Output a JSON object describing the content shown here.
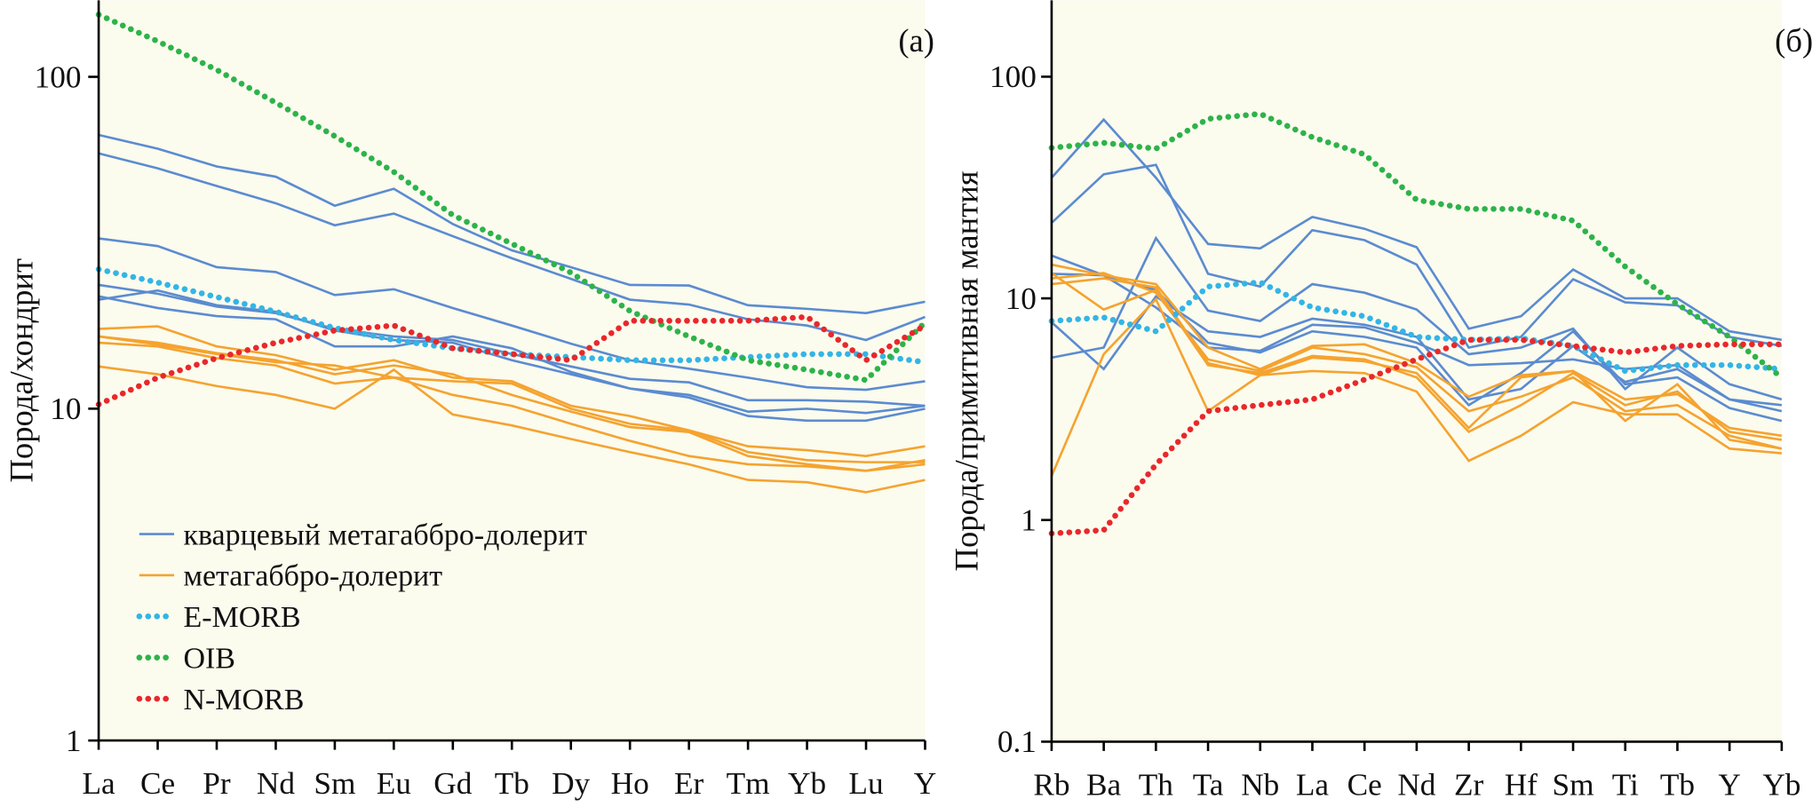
{
  "chart_data": [
    {
      "type": "line",
      "label": "(а)",
      "ylabel": "Порода/хондрит",
      "log_scale": true,
      "legend": "lower left",
      "categories": [
        "La",
        "Ce",
        "Pr",
        "Nd",
        "Sm",
        "Eu",
        "Gd",
        "Tb",
        "Dy",
        "Ho",
        "Er",
        "Tm",
        "Yb",
        "Lu",
        "Y"
      ],
      "ylim": [
        1,
        170
      ],
      "yticks": [
        1,
        10,
        100
      ],
      "series": [
        {
          "name": "кварцевый метагаббро-долерит",
          "color": "#5b8bd0",
          "style": "solid",
          "values": [
            [
              66.8,
              60.7,
              53.7,
              50,
              40.9,
              46,
              36,
              30,
              26.7,
              23.6,
              23.5,
              20.5,
              20,
              19.4,
              21
            ],
            [
              58.8,
              53,
              46.9,
              41.6,
              35.7,
              38.7,
              33.1,
              28.4,
              24.6,
              21.3,
              20.6,
              18.6,
              17.8,
              16.1,
              18.9
            ],
            [
              32.6,
              30.9,
              26.7,
              25.8,
              22,
              22.9,
              20.1,
              17.8,
              15.7,
              14,
              13.2,
              12.4,
              11.6,
              11.4,
              12.1
            ],
            [
              23.6,
              22.2,
              20.3,
              19.4,
              17.4,
              16.5,
              16.1,
              14.6,
              13.4,
              12.3,
              12,
              10.6,
              10.6,
              10.5,
              10.2
            ],
            [
              21.3,
              22.7,
              20.5,
              19.6,
              17.2,
              16.1,
              15.8,
              14,
              12.7,
              11.5,
              11,
              9.8,
              10,
              9.7,
              10.2
            ],
            [
              21.8,
              20.1,
              19,
              18.6,
              15.4,
              15.4,
              16.5,
              15.2,
              12.9,
              11.5,
              10.8,
              9.5,
              9.2,
              9.2,
              10
            ]
          ]
        },
        {
          "name": "метагаббро-долерит",
          "color": "#f5a32f",
          "style": "solid",
          "values": [
            [
              17.4,
              17.7,
              15.4,
              14.5,
              13.1,
              14,
              12.4,
              12.1,
              10.2,
              9.5,
              8.6,
              7.7,
              7.5,
              7.2,
              7.7
            ],
            [
              16.5,
              15.8,
              14.7,
              14,
              12.7,
              13.5,
              12.7,
              11,
              9.8,
              8.8,
              8.5,
              7.2,
              6.8,
              6.5,
              7
            ],
            [
              15.8,
              15.4,
              14.2,
              13.5,
              11.9,
              12.4,
              12.1,
              11.9,
              10,
              9,
              8.6,
              7.4,
              7,
              6.9,
              6.9
            ],
            [
              13.4,
              12.7,
              11.7,
              11,
              10,
              13.1,
              9.6,
              8.9,
              8.1,
              7.4,
              6.8,
              6.1,
              6,
              5.6,
              6.1
            ],
            [
              16.5,
              15.6,
              14.6,
              13.8,
              13.5,
              12.4,
              11,
              10.2,
              9,
              8,
              7.2,
              6.8,
              6.7,
              6.5,
              6.8
            ]
          ]
        },
        {
          "name": "E-MORB",
          "color": "#33b5e5",
          "style": "dotted",
          "values": [
            26.3,
            24,
            21.7,
            19.6,
            17.5,
            16.1,
            15.2,
            14.6,
            14.3,
            14,
            14,
            14.3,
            14.6,
            14.6,
            13.8
          ]
        },
        {
          "name": "OIB",
          "color": "#2db34a",
          "style": "dotted",
          "values": [
            154,
            128,
            105,
            83.6,
            66.3,
            51.7,
            38.3,
            31.4,
            25.7,
            19.7,
            16.5,
            14,
            13.1,
            12.2,
            18.2
          ]
        },
        {
          "name": "N-MORB",
          "color": "#e8282b",
          "style": "dotted",
          "values": [
            10.3,
            12.4,
            14.2,
            15.8,
            17.2,
            17.8,
            15.2,
            14.6,
            14,
            18.4,
            18.4,
            18.4,
            18.9,
            14,
            17.8
          ]
        }
      ]
    },
    {
      "type": "line",
      "label": "(б)",
      "ylabel": "Порода/примитивная мантия",
      "log_scale": true,
      "categories": [
        "Rb",
        "Ba",
        "Th",
        "Ta",
        "Nb",
        "La",
        "Ce",
        "Nd",
        "Zr",
        "Hf",
        "Sm",
        "Ti",
        "Tb",
        "Y",
        "Yb"
      ],
      "ylim": [
        0.1,
        221
      ],
      "yticks": [
        0.1,
        1,
        10,
        100
      ],
      "series": [
        {
          "name": "кварцевый метагаббро-долерит",
          "color": "#5b8bd0",
          "style": "solid",
          "values": [
            [
              35,
              64,
              35,
              17.6,
              16.8,
              23.3,
              20.6,
              17,
              7.3,
              8.3,
              13.5,
              10,
              10,
              7.1,
              6.5
            ],
            [
              21.9,
              36.3,
              40,
              12.9,
              11.3,
              20.3,
              18.3,
              14.2,
              6,
              6.7,
              12.2,
              9.6,
              9.3,
              6.7,
              6.1
            ],
            [
              5.4,
              6,
              18.7,
              8.8,
              7.9,
              11.6,
              10.6,
              8.9,
              5.6,
              6,
              7.3,
              3.9,
              6,
              4.1,
              3.5
            ],
            [
              7.8,
              4.8,
              10.2,
              7.1,
              6.7,
              8.1,
              7.6,
              6.7,
              3.5,
              3.9,
              6.1,
              4.2,
              4.8,
              3.5,
              3.1
            ],
            [
              15.6,
              12.7,
              9.1,
              6,
              5.8,
              7.6,
              7.4,
              6.3,
              5,
              5.1,
              5.3,
              4.8,
              5,
              3.5,
              3.3
            ],
            [
              12.9,
              12.7,
              10.9,
              6.3,
              5.7,
              7.1,
              6.7,
              6,
              3.3,
              4.6,
              7.1,
              4.1,
              4.4,
              3.2,
              2.8
            ]
          ]
        },
        {
          "name": "метагаббро-долерит",
          "color": "#f5a32f",
          "style": "solid",
          "values": [
            [
              14.2,
              12.7,
              11.6,
              6,
              4.8,
              6.1,
              6.2,
              5.1,
              3.6,
              4.5,
              4.7,
              3.5,
              3.7,
              2.6,
              2.4
            ],
            [
              12.3,
              13,
              10.6,
              5.3,
              4.7,
              6,
              5.6,
              4.9,
              3.1,
              3.6,
              4.4,
              3.1,
              3.3,
              2.4,
              2.1
            ],
            [
              13,
              8.9,
              10.9,
              5,
              4.6,
              5.5,
              5.3,
              4.4,
              2.5,
              3.3,
              4.6,
              3.3,
              3.8,
              2.5,
              2.3
            ],
            [
              1.58,
              5.6,
              9.9,
              3.1,
              4.5,
              4.7,
              4.6,
              3.8,
              1.85,
              2.4,
              3.4,
              3,
              3,
              2.1,
              2
            ],
            [
              11.6,
              12.3,
              11.2,
              5.1,
              4.5,
              5.4,
              5.2,
              4.6,
              2.6,
              4.4,
              4.7,
              2.8,
              4.1,
              2.3,
              2.1
            ]
          ]
        },
        {
          "name": "E-MORB",
          "color": "#33b5e5",
          "style": "dotted",
          "values": [
            7.9,
            8.2,
            7.1,
            11.3,
            11.8,
            9.1,
            8.3,
            6.7,
            6.5,
            6.6,
            6.1,
            4.7,
            5,
            5,
            4.8
          ]
        },
        {
          "name": "OIB",
          "color": "#2db34a",
          "style": "dotted",
          "values": [
            47.8,
            50.3,
            47.3,
            64.6,
            68,
            53.4,
            44.6,
            27.8,
            25.3,
            25.3,
            22.4,
            13.9,
            9.4,
            6.7,
            4.4
          ]
        },
        {
          "name": "N-MORB",
          "color": "#e8282b",
          "style": "dotted",
          "values": [
            0.87,
            0.9,
            1.78,
            3.1,
            3.3,
            3.5,
            4.3,
            5.3,
            6.5,
            6.5,
            6.1,
            5.7,
            6.1,
            6.2,
            6.2
          ]
        }
      ]
    }
  ]
}
